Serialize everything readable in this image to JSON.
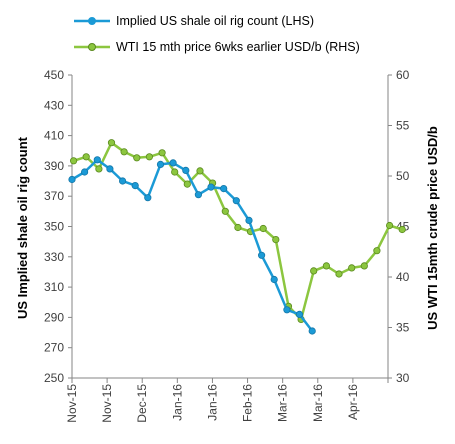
{
  "chart_data": {
    "type": "line",
    "x_tick_labels": [
      "Nov-15",
      "Nov-15",
      "Dec-15",
      "Jan-16",
      "Jan-16",
      "Feb-16",
      "Mar-16",
      "Mar-16",
      "Apr-16"
    ],
    "ylabel_left": "US Implied shale oil rig count",
    "ylabel_right": "US WTI 15mth crude price USD/b",
    "ylim_left": [
      250,
      450
    ],
    "ylim_right": [
      30,
      60
    ],
    "yticks_left": [
      250,
      270,
      290,
      310,
      330,
      350,
      370,
      390,
      410,
      430,
      450
    ],
    "yticks_right": [
      30,
      35,
      40,
      45,
      50,
      55,
      60
    ],
    "grid": false,
    "legend_position": "top",
    "series": [
      {
        "name": "Implied US shale oil rig count (LHS)",
        "axis": "left",
        "color": "#1b9ad6",
        "x": [
          0,
          0.04,
          0.08,
          0.12,
          0.16,
          0.2,
          0.24,
          0.28,
          0.32,
          0.36,
          0.4,
          0.44,
          0.48,
          0.52,
          0.56,
          0.6,
          0.64,
          0.68,
          0.72,
          0.76
        ],
        "values": [
          381,
          386,
          394,
          388,
          380,
          377,
          369,
          391,
          392,
          387,
          371,
          376,
          375,
          367,
          354,
          331,
          315,
          295,
          292,
          281
        ]
      },
      {
        "name": "WTI 15 mth price 6wks earlier USD/b (RHS)",
        "axis": "right",
        "color": "#8cc63f",
        "x": [
          0.005,
          0.045,
          0.085,
          0.125,
          0.165,
          0.205,
          0.245,
          0.285,
          0.325,
          0.365,
          0.405,
          0.445,
          0.485,
          0.525,
          0.565,
          0.605,
          0.645,
          0.685,
          0.725,
          0.765,
          0.805,
          0.845,
          0.885,
          0.925,
          0.965,
          1.005,
          1.045
        ],
        "values": [
          51.5,
          51.9,
          50.7,
          53.3,
          52.4,
          51.8,
          51.9,
          52.3,
          50.4,
          49.2,
          50.5,
          49.3,
          46.5,
          44.9,
          44.5,
          44.8,
          43.7,
          37.1,
          35.8,
          40.6,
          41.1,
          40.3,
          40.9,
          41.1,
          42.6,
          45.1,
          44.7
        ]
      }
    ]
  }
}
